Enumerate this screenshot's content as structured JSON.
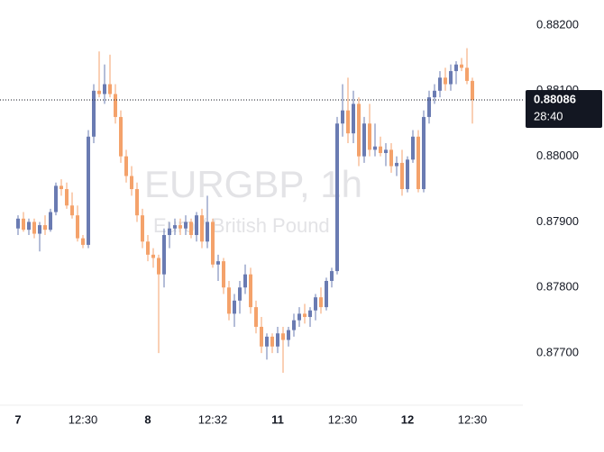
{
  "chart_data": {
    "type": "candlestick",
    "title": "EURGBP, 1h",
    "subtitle": "Euro / British Pound",
    "categories": [
      "7",
      null,
      null,
      null,
      null,
      null,
      null,
      null,
      null,
      null,
      null,
      null,
      "12:30",
      null,
      null,
      null,
      null,
      null,
      null,
      null,
      null,
      null,
      null,
      null,
      "8",
      null,
      null,
      null,
      null,
      null,
      null,
      null,
      null,
      null,
      null,
      null,
      "12:32",
      null,
      null,
      null,
      null,
      null,
      null,
      null,
      null,
      null,
      null,
      null,
      "11",
      null,
      null,
      null,
      null,
      null,
      null,
      null,
      null,
      null,
      null,
      null,
      "12:30",
      null,
      null,
      null,
      null,
      null,
      null,
      null,
      null,
      null,
      null,
      null,
      "12",
      null,
      null,
      null,
      null,
      null,
      null,
      null,
      null,
      null,
      null,
      null,
      "12:30"
    ],
    "ohlc": [
      [
        0.8789,
        0.8791,
        0.8788,
        0.87905
      ],
      [
        0.87905,
        0.87915,
        0.87885,
        0.87888
      ],
      [
        0.87888,
        0.87905,
        0.8788,
        0.879
      ],
      [
        0.879,
        0.87905,
        0.87875,
        0.87882
      ],
      [
        0.87882,
        0.879,
        0.87855,
        0.87895
      ],
      [
        0.87895,
        0.8791,
        0.8788,
        0.87888
      ],
      [
        0.87888,
        0.8792,
        0.87885,
        0.87915
      ],
      [
        0.87915,
        0.8796,
        0.8791,
        0.87955
      ],
      [
        0.87955,
        0.87965,
        0.8794,
        0.8795
      ],
      [
        0.8795,
        0.8796,
        0.8792,
        0.87925
      ],
      [
        0.87925,
        0.87945,
        0.87905,
        0.8791
      ],
      [
        0.8791,
        0.87925,
        0.8787,
        0.87875
      ],
      [
        0.87875,
        0.8788,
        0.8786,
        0.87865
      ],
      [
        0.87865,
        0.8804,
        0.8786,
        0.8803
      ],
      [
        0.8803,
        0.8811,
        0.8802,
        0.881
      ],
      [
        0.881,
        0.8816,
        0.8809,
        0.88095
      ],
      [
        0.88095,
        0.8814,
        0.8808,
        0.8811
      ],
      [
        0.8811,
        0.88155,
        0.8809,
        0.88095
      ],
      [
        0.88095,
        0.8811,
        0.8805,
        0.8806
      ],
      [
        0.8806,
        0.8807,
        0.8799,
        0.88
      ],
      [
        0.88,
        0.8801,
        0.8796,
        0.8797
      ],
      [
        0.8797,
        0.87985,
        0.8794,
        0.8795
      ],
      [
        0.8795,
        0.8796,
        0.879,
        0.8791
      ],
      [
        0.8791,
        0.8792,
        0.8786,
        0.8787
      ],
      [
        0.8787,
        0.8788,
        0.8784,
        0.8785
      ],
      [
        0.8785,
        0.8786,
        0.8783,
        0.87845
      ],
      [
        0.87845,
        0.8785,
        0.877,
        0.8782
      ],
      [
        0.8782,
        0.8789,
        0.878,
        0.8788
      ],
      [
        0.8788,
        0.879,
        0.8786,
        0.8789
      ],
      [
        0.8789,
        0.87905,
        0.8788,
        0.87895
      ],
      [
        0.87895,
        0.87905,
        0.8788,
        0.8789
      ],
      [
        0.8789,
        0.8791,
        0.8788,
        0.879
      ],
      [
        0.879,
        0.87905,
        0.87875,
        0.8788
      ],
      [
        0.8788,
        0.87915,
        0.8787,
        0.8791
      ],
      [
        0.8791,
        0.8792,
        0.8786,
        0.8787
      ],
      [
        0.8787,
        0.8794,
        0.8786,
        0.879
      ],
      [
        0.879,
        0.87905,
        0.8783,
        0.87835
      ],
      [
        0.87835,
        0.8785,
        0.8781,
        0.8784
      ],
      [
        0.8784,
        0.87845,
        0.8779,
        0.878
      ],
      [
        0.878,
        0.8781,
        0.8775,
        0.8776
      ],
      [
        0.8776,
        0.8779,
        0.8774,
        0.8778
      ],
      [
        0.8778,
        0.8781,
        0.8776,
        0.878
      ],
      [
        0.878,
        0.87835,
        0.8779,
        0.8782
      ],
      [
        0.8782,
        0.8783,
        0.8776,
        0.8777
      ],
      [
        0.8777,
        0.8778,
        0.8773,
        0.8774
      ],
      [
        0.8774,
        0.87755,
        0.877,
        0.8771
      ],
      [
        0.8771,
        0.8773,
        0.8769,
        0.87725
      ],
      [
        0.87725,
        0.8773,
        0.877,
        0.8771
      ],
      [
        0.8771,
        0.8774,
        0.877,
        0.8773
      ],
      [
        0.8773,
        0.8774,
        0.8767,
        0.8772
      ],
      [
        0.8772,
        0.8774,
        0.8771,
        0.87735
      ],
      [
        0.87735,
        0.8776,
        0.87725,
        0.8775
      ],
      [
        0.8775,
        0.8777,
        0.8774,
        0.8776
      ],
      [
        0.8776,
        0.87775,
        0.87745,
        0.87755
      ],
      [
        0.87755,
        0.8777,
        0.8774,
        0.87765
      ],
      [
        0.87765,
        0.8779,
        0.8775,
        0.87785
      ],
      [
        0.87785,
        0.878,
        0.8776,
        0.8777
      ],
      [
        0.8777,
        0.87815,
        0.87765,
        0.8781
      ],
      [
        0.8781,
        0.8783,
        0.878,
        0.87825
      ],
      [
        0.87825,
        0.8806,
        0.8782,
        0.8805
      ],
      [
        0.8805,
        0.8811,
        0.8803,
        0.8807
      ],
      [
        0.8807,
        0.8812,
        0.8802,
        0.88035
      ],
      [
        0.88035,
        0.881,
        0.8802,
        0.8808
      ],
      [
        0.8808,
        0.8809,
        0.87985,
        0.88
      ],
      [
        0.88,
        0.8806,
        0.8799,
        0.8805
      ],
      [
        0.8805,
        0.8808,
        0.88,
        0.8801
      ],
      [
        0.8801,
        0.8805,
        0.88,
        0.88015
      ],
      [
        0.88015,
        0.8803,
        0.88,
        0.88005
      ],
      [
        0.88005,
        0.8802,
        0.87985,
        0.8801
      ],
      [
        0.8801,
        0.8802,
        0.87975,
        0.87985
      ],
      [
        0.87985,
        0.88,
        0.8797,
        0.8799
      ],
      [
        0.8799,
        0.8801,
        0.8794,
        0.8795
      ],
      [
        0.8795,
        0.88,
        0.87945,
        0.87995
      ],
      [
        0.87995,
        0.8804,
        0.8799,
        0.8803
      ],
      [
        0.8803,
        0.8804,
        0.87945,
        0.8795
      ],
      [
        0.8795,
        0.8807,
        0.87945,
        0.8806
      ],
      [
        0.8806,
        0.881,
        0.8805,
        0.8809
      ],
      [
        0.8809,
        0.8811,
        0.8808,
        0.881
      ],
      [
        0.881,
        0.8813,
        0.8809,
        0.8812
      ],
      [
        0.8812,
        0.88135,
        0.881,
        0.8811
      ],
      [
        0.8811,
        0.8814,
        0.881,
        0.8813
      ],
      [
        0.8813,
        0.88145,
        0.8811,
        0.8814
      ],
      [
        0.8814,
        0.8815,
        0.8813,
        0.88135
      ],
      [
        0.88135,
        0.88165,
        0.8811,
        0.88115
      ],
      [
        0.88115,
        0.8812,
        0.8805,
        0.88086
      ]
    ],
    "up_color": "#6a7bb2",
    "down_color": "#f4a26b",
    "ylim": [
      0.876205,
      0.882384
    ],
    "yticks": [
      {
        "value": 0.877,
        "label": "0.87700"
      },
      {
        "value": 0.878,
        "label": "0.87800"
      },
      {
        "value": 0.879,
        "label": "0.87900"
      },
      {
        "value": 0.88,
        "label": "0.88000"
      },
      {
        "value": 0.881,
        "label": "0.88100"
      },
      {
        "value": 0.882,
        "label": "0.88200"
      }
    ],
    "countdown": "28:40"
  }
}
